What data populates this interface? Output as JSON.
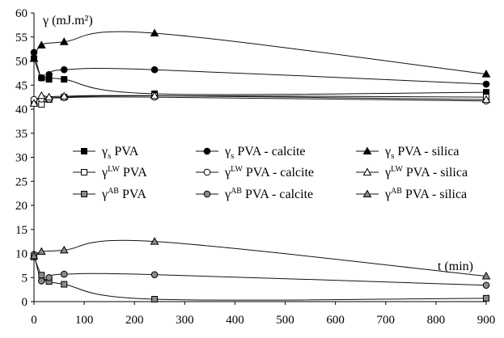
{
  "chart_data": {
    "type": "line",
    "ylabel": "γ  (mJ.m²)",
    "xlabel": "t (min)",
    "xlim": [
      0,
      900
    ],
    "ylim": [
      0,
      60
    ],
    "xticks": [
      0,
      100,
      200,
      300,
      400,
      500,
      600,
      700,
      800,
      900
    ],
    "yticks": [
      0,
      5,
      10,
      15,
      20,
      25,
      30,
      35,
      40,
      45,
      50,
      55,
      60
    ],
    "grid": false,
    "legend_position": "center",
    "colors": {
      "black": "#000000",
      "white": "#ffffff",
      "gray": "#8a8a8a",
      "line": "#111111"
    },
    "series": [
      {
        "id": "s-pva",
        "legend": {
          "sym": "γ",
          "sub": "s",
          "sup": "",
          "text": " PVA"
        },
        "marker": "square",
        "fill": "black",
        "x": [
          0,
          15,
          30,
          60,
          240,
          900
        ],
        "y": [
          50.5,
          46.5,
          46.2,
          46.2,
          43.2,
          43.5
        ]
      },
      {
        "id": "s-calcite",
        "legend": {
          "sym": "γ",
          "sub": "s",
          "sup": "",
          "text": " PVA - calcite"
        },
        "marker": "circle",
        "fill": "black",
        "x": [
          0,
          15,
          30,
          60,
          240,
          900
        ],
        "y": [
          51.8,
          46.5,
          47.2,
          48.2,
          48.2,
          45.2
        ]
      },
      {
        "id": "s-silica",
        "legend": {
          "sym": "γ",
          "sub": "s",
          "sup": "",
          "text": " PVA - silica"
        },
        "marker": "triangle",
        "fill": "black",
        "x": [
          0,
          15,
          60,
          240,
          900
        ],
        "y": [
          50.5,
          53.3,
          54.0,
          55.8,
          47.3
        ]
      },
      {
        "id": "lw-pva",
        "legend": {
          "sym": "γ",
          "sub": "",
          "sup": "LW",
          "text": " PVA"
        },
        "marker": "square",
        "fill": "white",
        "x": [
          0,
          15,
          30,
          60,
          240,
          900
        ],
        "y": [
          41.3,
          41.0,
          42.0,
          42.5,
          42.8,
          42.5
        ]
      },
      {
        "id": "lw-calcite",
        "legend": {
          "sym": "γ",
          "sub": "",
          "sup": "LW",
          "text": " PVA - calcite"
        },
        "marker": "circle",
        "fill": "white",
        "x": [
          0,
          15,
          30,
          60,
          240,
          900
        ],
        "y": [
          42.0,
          42.1,
          42.1,
          42.4,
          42.5,
          41.7
        ]
      },
      {
        "id": "lw-silica",
        "legend": {
          "sym": "γ",
          "sub": "",
          "sup": "LW",
          "text": " PVA - silica"
        },
        "marker": "triangle",
        "fill": "white",
        "x": [
          0,
          15,
          30,
          60,
          240,
          900
        ],
        "y": [
          41.2,
          42.8,
          42.5,
          42.7,
          42.8,
          42.0
        ]
      },
      {
        "id": "ab-pva",
        "legend": {
          "sym": "γ",
          "sub": "",
          "sup": "AB",
          "text": " PVA"
        },
        "marker": "square",
        "fill": "gray",
        "x": [
          0,
          15,
          30,
          60,
          240,
          900
        ],
        "y": [
          9.3,
          5.5,
          4.2,
          3.6,
          0.5,
          0.7
        ]
      },
      {
        "id": "ab-calcite",
        "legend": {
          "sym": "γ",
          "sub": "",
          "sup": "AB",
          "text": " PVA - calcite"
        },
        "marker": "circle",
        "fill": "gray",
        "x": [
          0,
          15,
          30,
          60,
          240,
          900
        ],
        "y": [
          9.8,
          4.3,
          5.0,
          5.7,
          5.6,
          3.4
        ]
      },
      {
        "id": "ab-silica",
        "legend": {
          "sym": "γ",
          "sub": "",
          "sup": "AB",
          "text": " PVA - silica"
        },
        "marker": "triangle",
        "fill": "gray",
        "x": [
          0,
          15,
          60,
          240,
          900
        ],
        "y": [
          9.5,
          10.4,
          10.7,
          12.5,
          5.3
        ]
      }
    ]
  }
}
